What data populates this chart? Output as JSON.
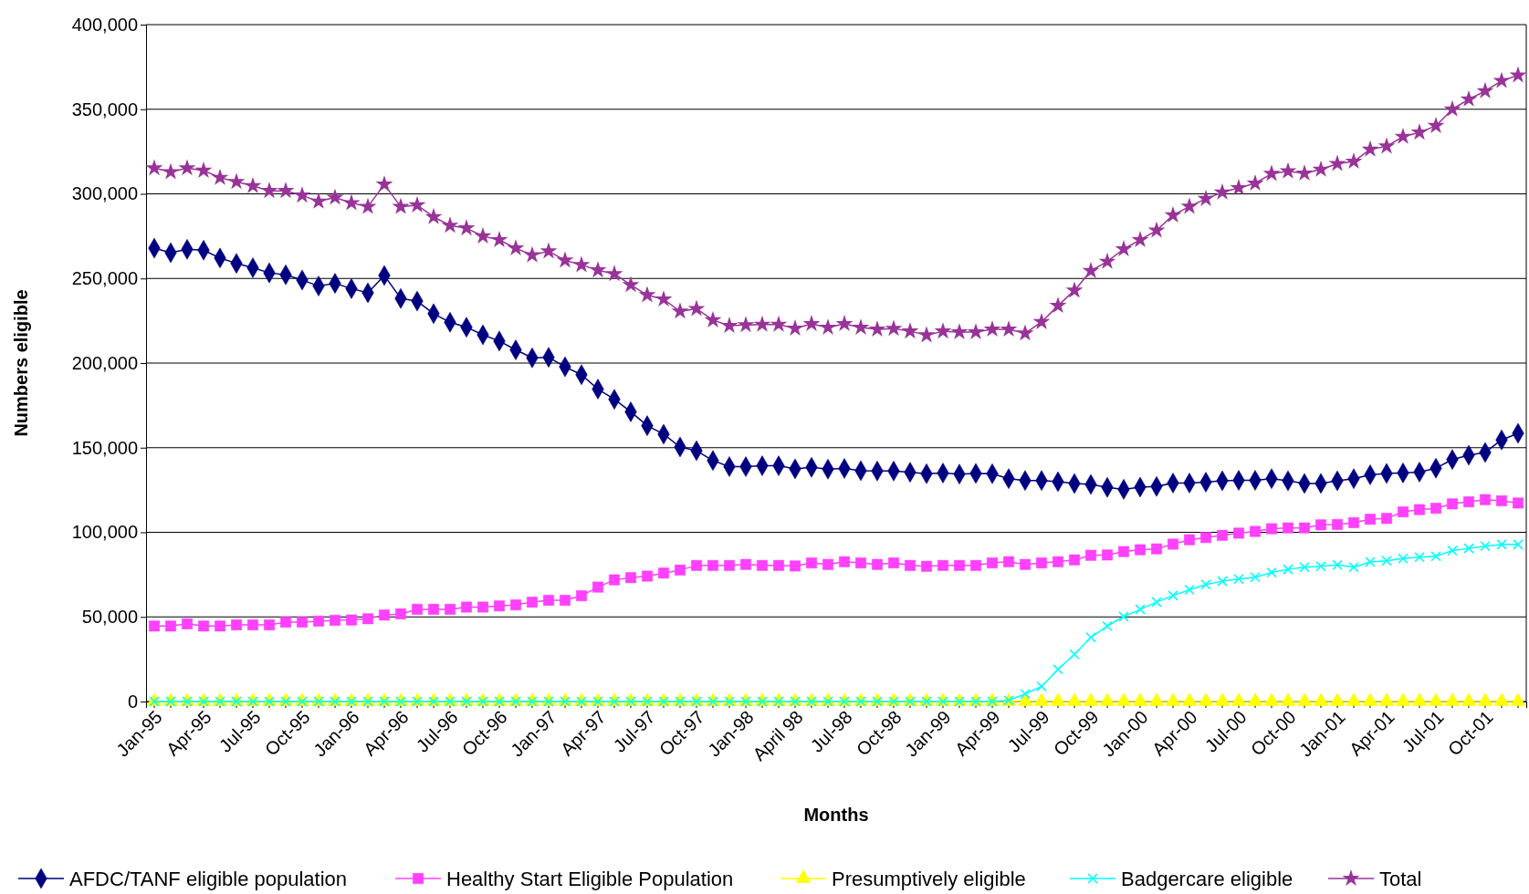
{
  "chart_data": {
    "type": "line",
    "xlabel": "Months",
    "ylabel": "Numbers eligible",
    "categories": [
      "Jan-95",
      null,
      null,
      "Apr-95",
      null,
      null,
      "Jul-95",
      null,
      null,
      "Oct-95",
      null,
      null,
      "Jan-96",
      null,
      null,
      "Apr-96",
      null,
      null,
      "Jul-96",
      null,
      null,
      "Oct-96",
      null,
      null,
      "Jan-97",
      null,
      null,
      "Apr-97",
      null,
      null,
      "Jul-97",
      null,
      null,
      "Oct-97",
      null,
      null,
      "Jan-98",
      null,
      null,
      "April 98",
      null,
      null,
      "Jul-98",
      null,
      null,
      "Oct-98",
      null,
      null,
      "Jan-99",
      null,
      null,
      "Apr-99",
      null,
      null,
      "Jul-99",
      null,
      null,
      "Oct-99",
      null,
      null,
      "Jan-00",
      null,
      null,
      "Apr-00",
      null,
      null,
      "Jul-00",
      null,
      null,
      "Oct-00",
      null,
      null,
      "Jan-01",
      null,
      null,
      "Apr-01",
      null,
      null,
      "Jul-01",
      null,
      null,
      "Oct-01",
      null,
      null
    ],
    "ylim": [
      0,
      400000
    ],
    "yticks": [
      {
        "value": 0,
        "label": "0"
      },
      {
        "value": 50000,
        "label": "50,000"
      },
      {
        "value": 100000,
        "label": "100,000"
      },
      {
        "value": 150000,
        "label": "150,000"
      },
      {
        "value": 200000,
        "label": "200,000"
      },
      {
        "value": 250000,
        "label": "250,000"
      },
      {
        "value": 300000,
        "label": "300,000"
      },
      {
        "value": 350000,
        "label": "350,000"
      },
      {
        "value": 400000,
        "label": "400,000"
      }
    ],
    "grid": "y",
    "legend": "bottom",
    "series": [
      {
        "name": "AFDC/TANF eligible population",
        "color": "#000080",
        "marker": "diamond",
        "values": [
          267900,
          265200,
          267200,
          266700,
          262100,
          258900,
          256300,
          253300,
          252200,
          249100,
          245500,
          247100,
          244000,
          241500,
          251800,
          238200,
          236600,
          229200,
          224100,
          221200,
          216700,
          213000,
          207800,
          203100,
          203400,
          197800,
          193100,
          184600,
          178600,
          171200,
          163000,
          158000,
          150400,
          148200,
          142400,
          138800,
          138800,
          139300,
          139300,
          137500,
          138400,
          137300,
          137700,
          136400,
          136200,
          136200,
          135500,
          134600,
          135000,
          134400,
          134800,
          134600,
          131700,
          130600,
          130600,
          129900,
          128800,
          128300,
          126600,
          125400,
          126700,
          127100,
          129100,
          129100,
          129600,
          130400,
          130700,
          130700,
          131700,
          130400,
          128900,
          128900,
          130400,
          131700,
          134000,
          134800,
          135100,
          135600,
          137900,
          143000,
          145600,
          147200,
          154600,
          158500
        ]
      },
      {
        "name": "Healthy Start Eligible Population",
        "color": "#ff40ff",
        "marker": "square",
        "values": [
          44600,
          44600,
          45900,
          44600,
          44600,
          45300,
          45300,
          45300,
          46900,
          46900,
          47500,
          48000,
          48200,
          48900,
          51100,
          51800,
          54500,
          54500,
          54500,
          55800,
          55800,
          56500,
          57100,
          58700,
          59800,
          59800,
          62500,
          67600,
          71900,
          73200,
          74100,
          75900,
          77700,
          80400,
          80400,
          80400,
          81000,
          80400,
          80400,
          80100,
          81900,
          81000,
          82600,
          81900,
          81000,
          81900,
          80400,
          79900,
          80400,
          80400,
          80400,
          81900,
          82600,
          81000,
          81900,
          82600,
          83700,
          86400,
          86600,
          88600,
          89700,
          90200,
          93000,
          95600,
          96900,
          98200,
          99500,
          100500,
          102100,
          102600,
          102600,
          104400,
          104600,
          105700,
          107700,
          108200,
          112100,
          113400,
          114200,
          116800,
          118000,
          119300,
          118600,
          117300
        ]
      },
      {
        "name": "Presumptively eligible",
        "color": "#ffff00",
        "marker": "triangle",
        "values": [
          0,
          0,
          0,
          0,
          0,
          0,
          0,
          0,
          0,
          0,
          0,
          0,
          0,
          0,
          0,
          0,
          0,
          0,
          0,
          0,
          0,
          0,
          0,
          0,
          0,
          0,
          0,
          0,
          0,
          0,
          0,
          0,
          0,
          0,
          0,
          0,
          0,
          0,
          0,
          0,
          0,
          0,
          0,
          0,
          0,
          0,
          0,
          0,
          0,
          0,
          0,
          0,
          0,
          0,
          0,
          0,
          0,
          0,
          0,
          0,
          0,
          0,
          0,
          0,
          0,
          0,
          0,
          0,
          0,
          0,
          0,
          0,
          0,
          0,
          0,
          0,
          0,
          0,
          0,
          0,
          0,
          0,
          0,
          0
        ]
      },
      {
        "name": "Badgercare eligible",
        "color": "#00ffff",
        "marker": "cross",
        "values": [
          0,
          0,
          0,
          0,
          0,
          0,
          0,
          0,
          0,
          0,
          0,
          0,
          0,
          0,
          0,
          0,
          0,
          0,
          0,
          0,
          0,
          0,
          0,
          0,
          0,
          0,
          0,
          0,
          0,
          0,
          0,
          0,
          0,
          0,
          0,
          0,
          0,
          0,
          0,
          0,
          0,
          0,
          0,
          0,
          0,
          0,
          0,
          0,
          0,
          0,
          0,
          0,
          700,
          4500,
          8900,
          19000,
          27900,
          37900,
          44600,
          50200,
          54400,
          58800,
          62600,
          66000,
          69100,
          71100,
          72400,
          73500,
          76300,
          78100,
          79400,
          79900,
          80700,
          79400,
          82500,
          83200,
          84500,
          85300,
          85800,
          89200,
          90500,
          91800,
          92800,
          92800
        ]
      },
      {
        "name": "Total",
        "color": "#993399",
        "marker": "star",
        "values": [
          315200,
          312900,
          315200,
          313800,
          309600,
          307100,
          304700,
          301800,
          301800,
          299100,
          295500,
          297800,
          294600,
          292400,
          305600,
          292400,
          293300,
          286400,
          281300,
          279700,
          275000,
          272800,
          267900,
          263800,
          266100,
          260700,
          258000,
          254900,
          252700,
          246200,
          240200,
          237700,
          230600,
          232100,
          225400,
          222100,
          222500,
          222800,
          222800,
          220500,
          223200,
          221000,
          223200,
          221000,
          219900,
          220300,
          218800,
          216500,
          218800,
          218300,
          218300,
          219900,
          219900,
          217600,
          224300,
          233900,
          242900,
          254500,
          260000,
          267400,
          272800,
          278400,
          287400,
          292500,
          297100,
          300900,
          303500,
          306200,
          311900,
          313400,
          312100,
          314400,
          317800,
          319100,
          326300,
          328100,
          333800,
          336300,
          340200,
          350000,
          355900,
          360800,
          366800,
          370100
        ]
      }
    ]
  }
}
